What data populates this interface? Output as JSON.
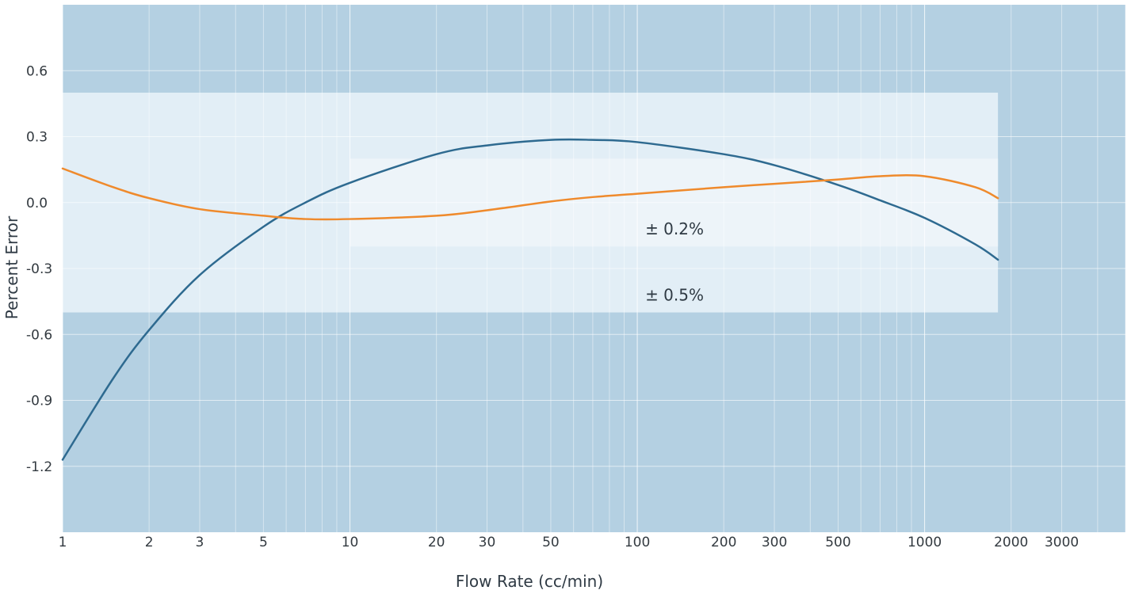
{
  "chart_data": {
    "type": "line",
    "title": "",
    "xlabel": "Flow Rate (cc/min)",
    "ylabel": "Percent Error",
    "x_scale": "log",
    "xlim": [
      1,
      5000
    ],
    "ylim": [
      -1.5,
      0.9
    ],
    "x_tick_values": [
      1,
      2,
      3,
      5,
      10,
      20,
      30,
      50,
      100,
      200,
      300,
      500,
      1000,
      2000,
      3000
    ],
    "x_tick_labels": [
      "1",
      "2",
      "3",
      "5",
      "10",
      "20",
      "30",
      "50",
      "100",
      "200",
      "300",
      "500",
      "1000",
      "2000",
      "3000"
    ],
    "y_tick_values": [
      0.6,
      0.3,
      0.0,
      -0.3,
      -0.6,
      -0.9,
      -1.2
    ],
    "y_tick_labels": [
      "0.6",
      "0.3",
      "0.0",
      "-0.3",
      "-0.6",
      "-0.9",
      "-1.2"
    ],
    "grid": true,
    "bands": [
      {
        "label": "± 0.5%",
        "lower": -0.5,
        "upper": 0.5,
        "x_start": 1,
        "x_end": 1800,
        "color": "#e2eef6"
      },
      {
        "label": "± 0.2%",
        "lower": -0.2,
        "upper": 0.2,
        "x_start": 10,
        "x_end": 1800,
        "color": "#edf4f9"
      }
    ],
    "series": [
      {
        "color": "#2e6a90",
        "x": [
          1,
          1.5,
          2,
          3,
          5,
          7,
          10,
          20,
          30,
          50,
          70,
          100,
          200,
          300,
          500,
          700,
          1000,
          1500,
          1800
        ],
        "y": [
          -1.17,
          -0.8,
          -0.58,
          -0.33,
          -0.11,
          0.0,
          0.09,
          0.22,
          0.26,
          0.285,
          0.285,
          0.275,
          0.22,
          0.17,
          0.08,
          0.01,
          -0.07,
          -0.19,
          -0.26
        ]
      },
      {
        "color": "#ef8a2c",
        "x": [
          1,
          1.5,
          2,
          3,
          5,
          7,
          10,
          20,
          30,
          50,
          70,
          100,
          200,
          300,
          500,
          700,
          1000,
          1500,
          1800
        ],
        "y": [
          0.155,
          0.07,
          0.02,
          -0.03,
          -0.06,
          -0.075,
          -0.075,
          -0.06,
          -0.035,
          0.005,
          0.025,
          0.04,
          0.07,
          0.085,
          0.105,
          0.12,
          0.12,
          0.07,
          0.02
        ]
      }
    ]
  }
}
